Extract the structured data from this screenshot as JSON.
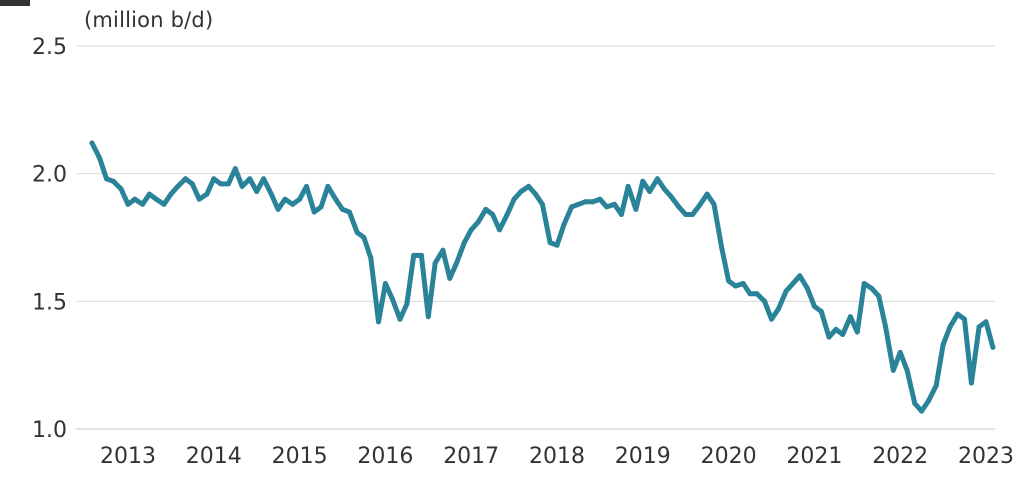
{
  "chart_data": {
    "type": "line",
    "ylabel": "(million b/d)",
    "ylim": [
      1.0,
      2.5
    ],
    "yticks": [
      1.0,
      1.5,
      2.0,
      2.5
    ],
    "ytick_labels": [
      "1.0",
      "1.5",
      "2.0",
      "2.5"
    ],
    "xlim": [
      2012.6,
      2023.2
    ],
    "xticks": [
      2013,
      2014,
      2015,
      2016,
      2017,
      2018,
      2019,
      2020,
      2021,
      2022,
      2023
    ],
    "xtick_labels": [
      "2013",
      "2014",
      "2015",
      "2016",
      "2017",
      "2018",
      "2019",
      "2020",
      "2021",
      "2022",
      "2023"
    ],
    "grid": "horizontal",
    "line_color": "#2a8399",
    "gridline_color": "#d9d9d9",
    "series": [
      {
        "x": [
          2012.58,
          2012.67,
          2012.75,
          2012.83,
          2012.92,
          2013.0,
          2013.08,
          2013.17,
          2013.25,
          2013.33,
          2013.42,
          2013.5,
          2013.58,
          2013.67,
          2013.75,
          2013.83,
          2013.92,
          2014.0,
          2014.08,
          2014.17,
          2014.25,
          2014.33,
          2014.42,
          2014.5,
          2014.58,
          2014.67,
          2014.75,
          2014.83,
          2014.92,
          2015.0,
          2015.08,
          2015.17,
          2015.25,
          2015.33,
          2015.42,
          2015.5,
          2015.58,
          2015.67,
          2015.75,
          2015.83,
          2015.92,
          2016.0,
          2016.08,
          2016.17,
          2016.25,
          2016.33,
          2016.42,
          2016.5,
          2016.58,
          2016.67,
          2016.75,
          2016.83,
          2016.92,
          2017.0,
          2017.08,
          2017.17,
          2017.25,
          2017.33,
          2017.42,
          2017.5,
          2017.58,
          2017.67,
          2017.75,
          2017.83,
          2017.92,
          2018.0,
          2018.08,
          2018.17,
          2018.25,
          2018.33,
          2018.42,
          2018.5,
          2018.58,
          2018.67,
          2018.75,
          2018.83,
          2018.92,
          2019.0,
          2019.08,
          2019.17,
          2019.25,
          2019.33,
          2019.42,
          2019.5,
          2019.58,
          2019.67,
          2019.75,
          2019.83,
          2019.92,
          2020.0,
          2020.08,
          2020.17,
          2020.25,
          2020.33,
          2020.42,
          2020.5,
          2020.58,
          2020.67,
          2020.75,
          2020.83,
          2020.92,
          2021.0,
          2021.08,
          2021.17,
          2021.25,
          2021.33,
          2021.42,
          2021.5,
          2021.58,
          2021.67,
          2021.75,
          2021.83,
          2021.92,
          2022.0,
          2022.08,
          2022.17,
          2022.25,
          2022.33,
          2022.42,
          2022.5,
          2022.58,
          2022.67,
          2022.75,
          2022.83,
          2022.92,
          2023.0,
          2023.08
        ],
        "values": [
          2.12,
          2.06,
          1.98,
          1.97,
          1.94,
          1.88,
          1.9,
          1.88,
          1.92,
          1.9,
          1.88,
          1.92,
          1.95,
          1.98,
          1.96,
          1.9,
          1.92,
          1.98,
          1.96,
          1.96,
          2.02,
          1.95,
          1.98,
          1.93,
          1.98,
          1.92,
          1.86,
          1.9,
          1.88,
          1.9,
          1.95,
          1.85,
          1.87,
          1.95,
          1.9,
          1.86,
          1.85,
          1.77,
          1.75,
          1.67,
          1.42,
          1.57,
          1.51,
          1.43,
          1.49,
          1.68,
          1.68,
          1.44,
          1.65,
          1.7,
          1.59,
          1.65,
          1.73,
          1.78,
          1.81,
          1.86,
          1.84,
          1.78,
          1.84,
          1.9,
          1.93,
          1.95,
          1.92,
          1.88,
          1.73,
          1.72,
          1.8,
          1.87,
          1.88,
          1.89,
          1.89,
          1.9,
          1.87,
          1.88,
          1.84,
          1.95,
          1.86,
          1.97,
          1.93,
          1.98,
          1.94,
          1.91,
          1.87,
          1.84,
          1.84,
          1.88,
          1.92,
          1.88,
          1.71,
          1.58,
          1.56,
          1.57,
          1.53,
          1.53,
          1.5,
          1.43,
          1.47,
          1.54,
          1.57,
          1.6,
          1.55,
          1.48,
          1.46,
          1.36,
          1.39,
          1.37,
          1.44,
          1.38,
          1.57,
          1.55,
          1.52,
          1.4,
          1.23,
          1.3,
          1.23,
          1.1,
          1.07,
          1.11,
          1.17,
          1.33,
          1.4,
          1.45,
          1.43,
          1.18,
          1.4,
          1.42,
          1.32
        ]
      }
    ]
  }
}
